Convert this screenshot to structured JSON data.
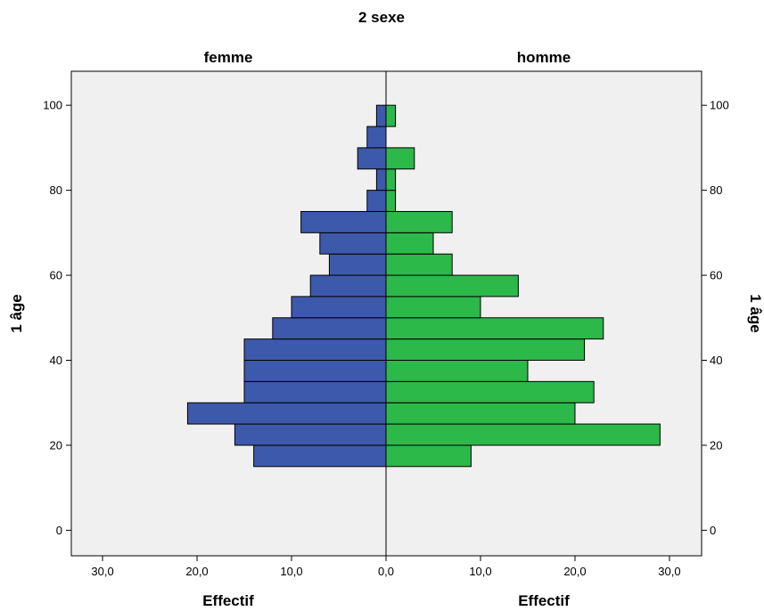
{
  "chart_data": {
    "type": "bar",
    "title": "2 sexe",
    "ylabel": "1 âge",
    "xlabel": "Effectif",
    "y_ticks": [
      "0",
      "20",
      "40",
      "60",
      "80",
      "100"
    ],
    "x_ticks": [
      "30,0",
      "20,0",
      "10,0",
      "0,0",
      "10,0",
      "20,0",
      "30,0"
    ],
    "bin_width": 5,
    "ylim": [
      -6,
      108
    ],
    "xlim": [
      -33.4,
      33.4
    ],
    "categories": [
      "15-20",
      "20-25",
      "25-30",
      "30-35",
      "35-40",
      "40-45",
      "45-50",
      "50-55",
      "55-60",
      "60-65",
      "65-70",
      "70-75",
      "75-80",
      "80-85",
      "85-90",
      "90-95",
      "95-100"
    ],
    "series": [
      {
        "name": "femme",
        "color": "#3d59ab",
        "bin_starts": [
          15,
          20,
          25,
          30,
          35,
          40,
          45,
          50,
          55,
          60,
          65,
          70,
          75,
          80,
          85,
          90,
          95
        ],
        "values": [
          14,
          16,
          21,
          15,
          15,
          15,
          12,
          10,
          8,
          6,
          7,
          9,
          2,
          1,
          3,
          2,
          1
        ]
      },
      {
        "name": "homme",
        "color": "#2db84a",
        "bin_starts": [
          15,
          20,
          25,
          30,
          35,
          40,
          45,
          50,
          55,
          60,
          65,
          70,
          75,
          80,
          85,
          90,
          95
        ],
        "values": [
          9,
          29,
          20,
          22,
          15,
          21,
          23,
          10,
          14,
          7,
          5,
          7,
          1,
          1,
          3,
          0,
          1
        ]
      }
    ],
    "grid": false,
    "background": "#f0f0f0"
  }
}
